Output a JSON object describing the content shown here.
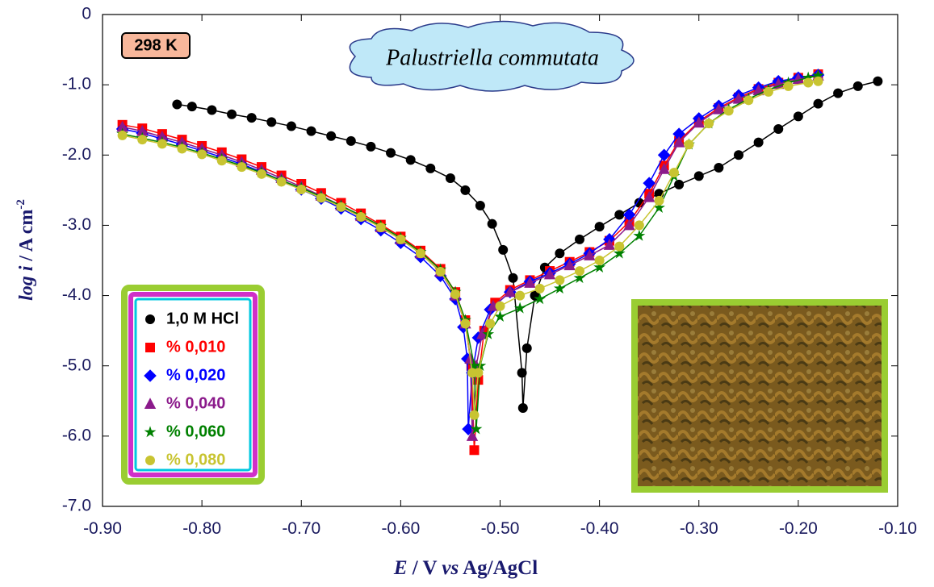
{
  "chart_data": {
    "type": "scatter-line",
    "annotations": {
      "temperature": "298 K",
      "species": "Palustriella commutata"
    },
    "x_label": [
      "E",
      " / V ",
      "vs",
      " Ag/AgCl"
    ],
    "y_label": [
      "log i",
      " / A cm",
      "-2"
    ],
    "xlim": [
      -0.9,
      -0.1
    ],
    "ylim": [
      -7,
      0
    ],
    "xticks": [
      {
        "value": -0.9,
        "label": "-0.90"
      },
      {
        "value": -0.8,
        "label": "-0.80"
      },
      {
        "value": -0.7,
        "label": "-0.70"
      },
      {
        "value": -0.6,
        "label": "-0.60"
      },
      {
        "value": -0.5,
        "label": "-0.50"
      },
      {
        "value": -0.4,
        "label": "-0.40"
      },
      {
        "value": -0.3,
        "label": "-0.30"
      },
      {
        "value": -0.2,
        "label": "-0.20"
      },
      {
        "value": -0.1,
        "label": "-0.10"
      }
    ],
    "yticks": [
      0,
      {
        "value": -1,
        "label": "-1.0"
      },
      {
        "value": -2,
        "label": "-2.0"
      },
      {
        "value": -3,
        "label": "-3.0"
      },
      {
        "value": -4,
        "label": "-4.0"
      },
      {
        "value": -5,
        "label": "-5.0"
      },
      {
        "value": -6,
        "label": "-6.0"
      },
      {
        "value": -7,
        "label": "-7.0"
      }
    ],
    "series": [
      {
        "name": "1,0 M HCl",
        "color": "#000000",
        "marker": "circle",
        "x": [
          -0.825,
          -0.81,
          -0.79,
          -0.77,
          -0.75,
          -0.73,
          -0.71,
          -0.69,
          -0.67,
          -0.65,
          -0.63,
          -0.61,
          -0.59,
          -0.57,
          -0.55,
          -0.535,
          -0.52,
          -0.508,
          -0.497,
          -0.487,
          -0.478,
          -0.477,
          -0.473,
          -0.465,
          -0.455,
          -0.44,
          -0.42,
          -0.4,
          -0.38,
          -0.36,
          -0.34,
          -0.32,
          -0.3,
          -0.28,
          -0.26,
          -0.24,
          -0.22,
          -0.2,
          -0.18,
          -0.16,
          -0.14,
          -0.12
        ],
        "values": [
          -1.28,
          -1.31,
          -1.36,
          -1.42,
          -1.47,
          -1.53,
          -1.59,
          -1.66,
          -1.73,
          -1.8,
          -1.88,
          -1.97,
          -2.07,
          -2.19,
          -2.33,
          -2.5,
          -2.72,
          -2.98,
          -3.35,
          -3.75,
          -5.1,
          -5.6,
          -4.75,
          -4.0,
          -3.6,
          -3.4,
          -3.2,
          -3.02,
          -2.85,
          -2.68,
          -2.55,
          -2.42,
          -2.3,
          -2.18,
          -2.0,
          -1.82,
          -1.63,
          -1.45,
          -1.27,
          -1.12,
          -1.02,
          -0.95
        ]
      },
      {
        "name": "% 0,010",
        "color": "#ff0000",
        "marker": "square",
        "x": [
          -0.88,
          -0.86,
          -0.84,
          -0.82,
          -0.8,
          -0.78,
          -0.76,
          -0.74,
          -0.72,
          -0.7,
          -0.68,
          -0.66,
          -0.64,
          -0.62,
          -0.6,
          -0.58,
          -0.56,
          -0.545,
          -0.535,
          -0.529,
          -0.526,
          -0.522,
          -0.516,
          -0.505,
          -0.49,
          -0.47,
          -0.45,
          -0.43,
          -0.41,
          -0.39,
          -0.37,
          -0.35,
          -0.335,
          -0.32,
          -0.3,
          -0.28,
          -0.26,
          -0.24,
          -0.22,
          -0.2,
          -0.18
        ],
        "values": [
          -1.57,
          -1.62,
          -1.7,
          -1.78,
          -1.87,
          -1.96,
          -2.06,
          -2.17,
          -2.29,
          -2.41,
          -2.54,
          -2.68,
          -2.83,
          -2.99,
          -3.16,
          -3.36,
          -3.62,
          -3.95,
          -4.35,
          -5.0,
          -6.2,
          -5.2,
          -4.5,
          -4.1,
          -3.92,
          -3.78,
          -3.65,
          -3.52,
          -3.38,
          -3.22,
          -2.95,
          -2.55,
          -2.15,
          -1.8,
          -1.52,
          -1.33,
          -1.18,
          -1.06,
          -0.97,
          -0.9,
          -0.85
        ]
      },
      {
        "name": "% 0,020",
        "color": "#0000ff",
        "marker": "diamond",
        "x": [
          -0.88,
          -0.86,
          -0.84,
          -0.82,
          -0.8,
          -0.78,
          -0.76,
          -0.74,
          -0.72,
          -0.7,
          -0.68,
          -0.66,
          -0.64,
          -0.62,
          -0.6,
          -0.58,
          -0.56,
          -0.545,
          -0.537,
          -0.533,
          -0.532,
          -0.528,
          -0.522,
          -0.51,
          -0.49,
          -0.47,
          -0.45,
          -0.43,
          -0.41,
          -0.39,
          -0.37,
          -0.35,
          -0.335,
          -0.32,
          -0.3,
          -0.28,
          -0.26,
          -0.24,
          -0.22,
          -0.2,
          -0.18
        ],
        "values": [
          -1.63,
          -1.69,
          -1.77,
          -1.85,
          -1.94,
          -2.03,
          -2.13,
          -2.24,
          -2.36,
          -2.49,
          -2.62,
          -2.76,
          -2.91,
          -3.07,
          -3.25,
          -3.45,
          -3.72,
          -4.05,
          -4.45,
          -4.9,
          -5.9,
          -5.1,
          -4.6,
          -4.2,
          -3.95,
          -3.8,
          -3.68,
          -3.55,
          -3.4,
          -3.2,
          -2.85,
          -2.4,
          -2.0,
          -1.7,
          -1.48,
          -1.3,
          -1.15,
          -1.04,
          -0.95,
          -0.9,
          -0.86
        ]
      },
      {
        "name": "% 0,040",
        "color": "#8b1a8b",
        "marker": "triangle",
        "x": [
          -0.88,
          -0.86,
          -0.84,
          -0.82,
          -0.8,
          -0.78,
          -0.76,
          -0.74,
          -0.72,
          -0.7,
          -0.68,
          -0.66,
          -0.64,
          -0.62,
          -0.6,
          -0.58,
          -0.56,
          -0.545,
          -0.535,
          -0.53,
          -0.528,
          -0.524,
          -0.518,
          -0.507,
          -0.49,
          -0.47,
          -0.45,
          -0.43,
          -0.41,
          -0.39,
          -0.37,
          -0.35,
          -0.335,
          -0.32,
          -0.3,
          -0.28,
          -0.26,
          -0.24,
          -0.22,
          -0.2,
          -0.18
        ],
        "values": [
          -1.6,
          -1.66,
          -1.74,
          -1.82,
          -1.91,
          -2.0,
          -2.1,
          -2.21,
          -2.33,
          -2.45,
          -2.58,
          -2.72,
          -2.87,
          -3.03,
          -3.2,
          -3.4,
          -3.66,
          -4.0,
          -4.4,
          -4.9,
          -6.0,
          -5.0,
          -4.55,
          -4.15,
          -3.95,
          -3.82,
          -3.7,
          -3.57,
          -3.43,
          -3.28,
          -3.0,
          -2.6,
          -2.2,
          -1.82,
          -1.54,
          -1.35,
          -1.2,
          -1.08,
          -0.99,
          -0.92,
          -0.87
        ]
      },
      {
        "name": "% 0,060",
        "color": "#008000",
        "marker": "star",
        "x": [
          -0.88,
          -0.86,
          -0.84,
          -0.82,
          -0.8,
          -0.78,
          -0.76,
          -0.74,
          -0.72,
          -0.7,
          -0.68,
          -0.66,
          -0.64,
          -0.62,
          -0.6,
          -0.58,
          -0.56,
          -0.545,
          -0.535,
          -0.526,
          -0.524,
          -0.52,
          -0.512,
          -0.5,
          -0.48,
          -0.46,
          -0.44,
          -0.42,
          -0.4,
          -0.38,
          -0.36,
          -0.34,
          -0.325,
          -0.31,
          -0.29,
          -0.27,
          -0.25,
          -0.23,
          -0.21,
          -0.19,
          -0.18
        ],
        "values": [
          -1.7,
          -1.76,
          -1.82,
          -1.89,
          -1.97,
          -2.06,
          -2.15,
          -2.25,
          -2.36,
          -2.47,
          -2.59,
          -2.72,
          -2.86,
          -3.01,
          -3.18,
          -3.38,
          -3.63,
          -3.95,
          -4.35,
          -5.0,
          -5.9,
          -5.0,
          -4.55,
          -4.3,
          -4.18,
          -4.05,
          -3.9,
          -3.75,
          -3.6,
          -3.4,
          -3.15,
          -2.75,
          -2.3,
          -1.85,
          -1.55,
          -1.35,
          -1.2,
          -1.07,
          -0.97,
          -0.9,
          -0.87
        ]
      },
      {
        "name": "% 0,080",
        "color": "#c8c431",
        "marker": "circle",
        "x": [
          -0.88,
          -0.86,
          -0.84,
          -0.82,
          -0.8,
          -0.78,
          -0.76,
          -0.74,
          -0.72,
          -0.7,
          -0.68,
          -0.66,
          -0.64,
          -0.62,
          -0.6,
          -0.58,
          -0.56,
          -0.545,
          -0.535,
          -0.528,
          -0.526,
          -0.522,
          -0.51,
          -0.5,
          -0.48,
          -0.46,
          -0.44,
          -0.42,
          -0.4,
          -0.38,
          -0.36,
          -0.34,
          -0.325,
          -0.31,
          -0.29,
          -0.27,
          -0.25,
          -0.23,
          -0.21,
          -0.19,
          -0.18
        ],
        "values": [
          -1.72,
          -1.78,
          -1.84,
          -1.91,
          -1.99,
          -2.08,
          -2.17,
          -2.27,
          -2.38,
          -2.49,
          -2.61,
          -2.74,
          -2.88,
          -3.03,
          -3.2,
          -3.4,
          -3.66,
          -3.98,
          -4.4,
          -5.1,
          -5.7,
          -5.1,
          -4.4,
          -4.15,
          -4.0,
          -3.9,
          -3.78,
          -3.65,
          -3.5,
          -3.3,
          -3.0,
          -2.65,
          -2.25,
          -1.85,
          -1.55,
          -1.37,
          -1.22,
          -1.1,
          -1.02,
          -0.97,
          -0.95
        ]
      }
    ]
  }
}
